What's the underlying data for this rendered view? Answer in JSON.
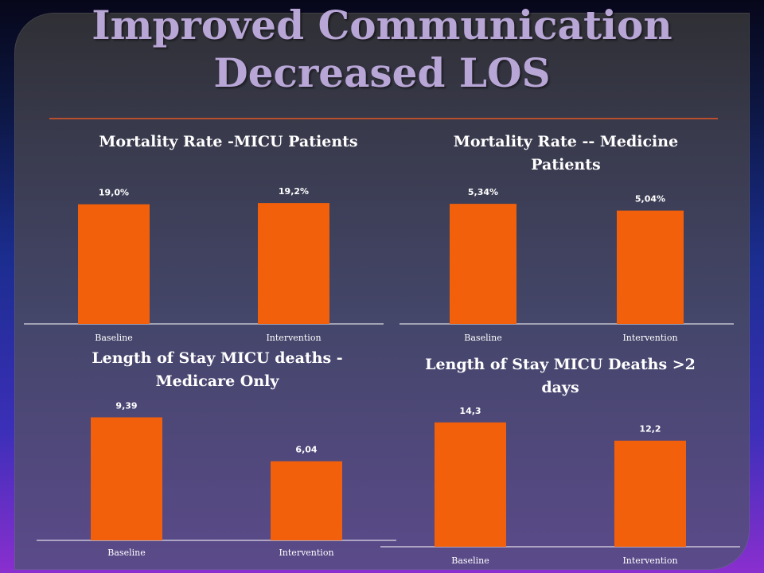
{
  "slide": {
    "title_line1": "Improved Communication",
    "title_line2": "Decreased LOS"
  },
  "colors": {
    "bar": "#f2600c",
    "axis": "#ffffff",
    "text": "#ffffff",
    "title": "#b8a6d6"
  },
  "chart_data": [
    {
      "type": "bar",
      "title": "Mortality Rate -MICU Patients",
      "categories": [
        "Baseline",
        "Intervention"
      ],
      "values": [
        19.0,
        19.2
      ],
      "labels": [
        "19,0%",
        "19,2%"
      ],
      "ylim": [
        0,
        22.5
      ]
    },
    {
      "type": "bar",
      "title": "Mortality Rate -- Medicine Patients",
      "categories": [
        "Baseline",
        "Intervention"
      ],
      "values": [
        5.34,
        5.04
      ],
      "labels": [
        "5,34%",
        "5,04%"
      ],
      "ylim": [
        0,
        6.3
      ]
    },
    {
      "type": "bar",
      "title": "Length of Stay  MICU deaths - Medicare Only",
      "categories": [
        "Baseline",
        "Intervention"
      ],
      "values": [
        9.39,
        6.04
      ],
      "labels": [
        "9,39",
        "6,04"
      ],
      "ylim": [
        0,
        11.3
      ]
    },
    {
      "type": "bar",
      "title": "Length of Stay MICU Deaths >2 days",
      "categories": [
        "Baseline",
        "Intervention"
      ],
      "values": [
        14.3,
        12.2
      ],
      "labels": [
        "14,3",
        "12,2"
      ],
      "ylim": [
        0,
        17.3
      ]
    }
  ]
}
